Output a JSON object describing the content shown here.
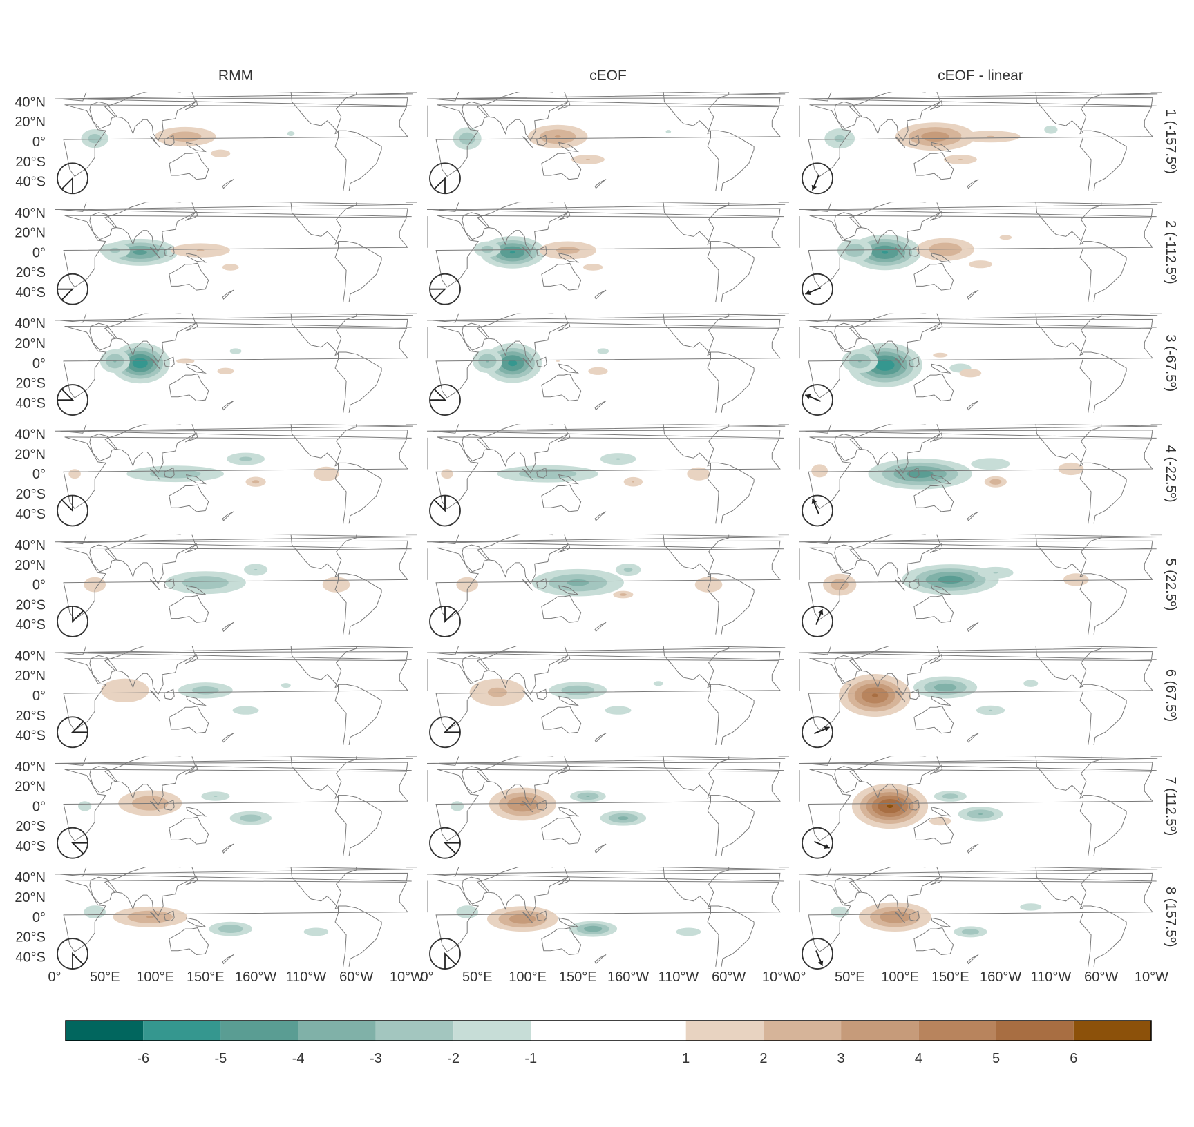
{
  "chart_data": {
    "type": "heatmap",
    "layout": "facet-grid",
    "columns": [
      "RMM",
      "cEOF",
      "cEOF - linear"
    ],
    "rows": [
      "1 (-157.5º)",
      "2 (-112.5º)",
      "3 (-67.5º)",
      "4 (-22.5º)",
      "5 (22.5º)",
      "6 (67.5º)",
      "7 (112.5º)",
      "8 (157.5º)"
    ],
    "row_phase_deg": [
      -157.5,
      -112.5,
      -67.5,
      -22.5,
      22.5,
      67.5,
      112.5,
      157.5
    ],
    "x_axis": {
      "ticks": [
        "0°",
        "50°E",
        "100°E",
        "150°E",
        "160°W",
        "110°W",
        "60°W",
        "10°W"
      ],
      "lon_values": [
        0,
        50,
        100,
        150,
        200,
        250,
        300,
        350
      ],
      "range": [
        0,
        360
      ]
    },
    "y_axis": {
      "ticks": [
        "40°N",
        "20°N",
        "0°",
        "20°S",
        "40°S"
      ],
      "lat_values": [
        40,
        20,
        0,
        -20,
        -40
      ],
      "range": [
        -50,
        50
      ]
    },
    "colorbar": {
      "tick_labels": [
        "-6",
        "-5",
        "-4",
        "-3",
        "-2",
        "-1",
        "1",
        "2",
        "3",
        "4",
        "5",
        "6"
      ],
      "boundaries": [
        -7,
        -6,
        -5,
        -4,
        -3,
        -2,
        -1,
        1,
        2,
        3,
        4,
        5,
        6,
        7
      ],
      "colors": [
        "#01665e",
        "#35978f",
        "#5a9d93",
        "#80b1a8",
        "#a3c6bf",
        "#c7ddd7",
        "#ffffff",
        "#e8d3c1",
        "#d6b499",
        "#c69b7a",
        "#b8845d",
        "#a86e42",
        "#8c510a"
      ]
    },
    "anomaly_blobs": {
      "RMM": [
        [
          [
            40,
            3,
            10,
            7,
            -2.5
          ],
          [
            130,
            5,
            22,
            7,
            2.6
          ],
          [
            165,
            -12,
            10,
            4,
            1.6
          ],
          [
            235,
            8,
            6,
            4,
            -1.2
          ]
        ],
        [
          [
            85,
            0,
            22,
            8,
            -4.2
          ],
          [
            60,
            2,
            12,
            6,
            -2.2
          ],
          [
            145,
            2,
            25,
            6,
            2.0
          ],
          [
            175,
            -15,
            10,
            4,
            1.4
          ]
        ],
        [
          [
            85,
            0,
            16,
            11,
            -5.6
          ],
          [
            60,
            2,
            10,
            8,
            -3
          ],
          [
            180,
            12,
            8,
            4,
            -1.3
          ],
          [
            170,
            -8,
            10,
            4,
            1.4
          ],
          [
            130,
            2,
            15,
            4,
            1.2
          ]
        ],
        [
          [
            120,
            0,
            35,
            6,
            -2.6
          ],
          [
            190,
            15,
            15,
            5,
            -2.2
          ],
          [
            200,
            -8,
            8,
            4,
            2.2
          ],
          [
            270,
            0,
            14,
            8,
            1.5
          ],
          [
            20,
            0,
            10,
            8,
            1.2
          ]
        ],
        [
          [
            150,
            2,
            28,
            8,
            -2.8
          ],
          [
            200,
            15,
            10,
            5,
            -2.0
          ],
          [
            40,
            0,
            10,
            7,
            1.8
          ],
          [
            280,
            0,
            14,
            8,
            1.6
          ]
        ],
        [
          [
            70,
            5,
            22,
            11,
            1.8
          ],
          [
            150,
            5,
            20,
            6,
            -2.5
          ],
          [
            190,
            -15,
            12,
            4,
            -1.8
          ],
          [
            230,
            10,
            8,
            4,
            -1.2
          ]
        ],
        [
          [
            95,
            3,
            22,
            9,
            2.8
          ],
          [
            160,
            10,
            12,
            4,
            -2.0
          ],
          [
            195,
            -12,
            15,
            5,
            -2.6
          ],
          [
            30,
            0,
            8,
            6,
            -1.4
          ]
        ],
        [
          [
            95,
            0,
            25,
            7,
            3.0
          ],
          [
            175,
            -12,
            15,
            5,
            -2.8
          ],
          [
            40,
            5,
            10,
            6,
            -1.8
          ],
          [
            260,
            -15,
            15,
            5,
            -1.4
          ]
        ]
      ],
      "cEOF": [
        [
          [
            40,
            3,
            10,
            8,
            -2.7
          ],
          [
            130,
            5,
            20,
            8,
            3.0
          ],
          [
            160,
            -18,
            14,
            4,
            2.0
          ],
          [
            240,
            10,
            6,
            4,
            -1.1
          ]
        ],
        [
          [
            85,
            0,
            18,
            9,
            -5.0
          ],
          [
            60,
            3,
            10,
            6,
            -2.4
          ],
          [
            140,
            2,
            22,
            7,
            2.3
          ],
          [
            165,
            -15,
            12,
            4,
            1.4
          ]
        ],
        [
          [
            85,
            0,
            16,
            11,
            -5.2
          ],
          [
            60,
            2,
            10,
            8,
            -3
          ],
          [
            175,
            12,
            8,
            4,
            -1.3
          ],
          [
            170,
            -8,
            10,
            4,
            1.6
          ],
          [
            130,
            2,
            15,
            4,
            1.0
          ]
        ],
        [
          [
            120,
            0,
            35,
            6,
            -2.8
          ],
          [
            190,
            15,
            15,
            5,
            -2.0
          ],
          [
            205,
            -8,
            8,
            4,
            2.0
          ],
          [
            270,
            0,
            14,
            8,
            1.4
          ],
          [
            20,
            0,
            10,
            8,
            1.2
          ]
        ],
        [
          [
            150,
            2,
            30,
            9,
            -3.2
          ],
          [
            200,
            15,
            10,
            5,
            -2.2
          ],
          [
            195,
            -10,
            8,
            3,
            2.2
          ],
          [
            40,
            0,
            10,
            7,
            1.8
          ],
          [
            280,
            0,
            14,
            8,
            1.6
          ]
        ],
        [
          [
            70,
            3,
            22,
            11,
            2.2
          ],
          [
            150,
            5,
            20,
            6,
            -2.8
          ],
          [
            190,
            -15,
            12,
            4,
            -1.8
          ],
          [
            230,
            12,
            8,
            4,
            -1.2
          ]
        ],
        [
          [
            95,
            2,
            20,
            10,
            4.0
          ],
          [
            160,
            10,
            12,
            4,
            -3.0
          ],
          [
            195,
            -12,
            15,
            5,
            -3.2
          ],
          [
            30,
            0,
            8,
            6,
            -1.4
          ]
        ],
        [
          [
            95,
            -2,
            22,
            8,
            3.6
          ],
          [
            165,
            -12,
            15,
            5,
            -3.6
          ],
          [
            40,
            5,
            10,
            6,
            -1.8
          ],
          [
            260,
            -15,
            15,
            5,
            -1.4
          ]
        ]
      ],
      "cEOF - linear": [
        [
          [
            40,
            3,
            12,
            8,
            -2.2
          ],
          [
            135,
            5,
            25,
            9,
            3.5
          ],
          [
            190,
            5,
            25,
            5,
            2.0
          ],
          [
            160,
            -18,
            14,
            4,
            2.0
          ],
          [
            250,
            12,
            8,
            5,
            -1.4
          ]
        ],
        [
          [
            85,
            0,
            20,
            10,
            -5.0
          ],
          [
            55,
            2,
            12,
            8,
            -2.8
          ],
          [
            145,
            3,
            20,
            8,
            2.8
          ],
          [
            180,
            -12,
            12,
            4,
            1.6
          ],
          [
            205,
            15,
            10,
            4,
            1.2
          ]
        ],
        [
          [
            85,
            -2,
            20,
            12,
            -5.6
          ],
          [
            60,
            2,
            12,
            8,
            -3
          ],
          [
            160,
            -5,
            12,
            5,
            -1.5
          ],
          [
            170,
            -10,
            10,
            4,
            1.8
          ],
          [
            140,
            8,
            12,
            4,
            1.2
          ]
        ],
        [
          [
            120,
            0,
            30,
            9,
            -4.4
          ],
          [
            190,
            10,
            20,
            6,
            -1.6
          ],
          [
            195,
            -8,
            8,
            4,
            2.6
          ],
          [
            270,
            5,
            14,
            7,
            1.5
          ],
          [
            20,
            3,
            10,
            8,
            1.4
          ]
        ],
        [
          [
            150,
            5,
            28,
            9,
            -4.4
          ],
          [
            195,
            12,
            15,
            5,
            -2.0
          ],
          [
            40,
            0,
            12,
            8,
            2.6
          ],
          [
            275,
            5,
            14,
            7,
            1.5
          ]
        ],
        [
          [
            75,
            0,
            20,
            12,
            5.0
          ],
          [
            145,
            8,
            20,
            7,
            -3.5
          ],
          [
            190,
            -15,
            12,
            4,
            -2.0
          ],
          [
            230,
            12,
            8,
            4,
            -1.5
          ]
        ],
        [
          [
            90,
            0,
            20,
            12,
            6.0
          ],
          [
            150,
            10,
            12,
            4,
            -2.5
          ],
          [
            180,
            -8,
            15,
            5,
            -3.0
          ],
          [
            140,
            -15,
            10,
            4,
            1.8
          ]
        ],
        [
          [
            95,
            0,
            22,
            9,
            3.8
          ],
          [
            170,
            -15,
            12,
            4,
            -2.6
          ],
          [
            230,
            10,
            12,
            4,
            -1.5
          ],
          [
            40,
            5,
            10,
            6,
            -1.5
          ]
        ]
      ]
    },
    "phase_dial_style": [
      "sector",
      "sector",
      "arrow"
    ]
  }
}
